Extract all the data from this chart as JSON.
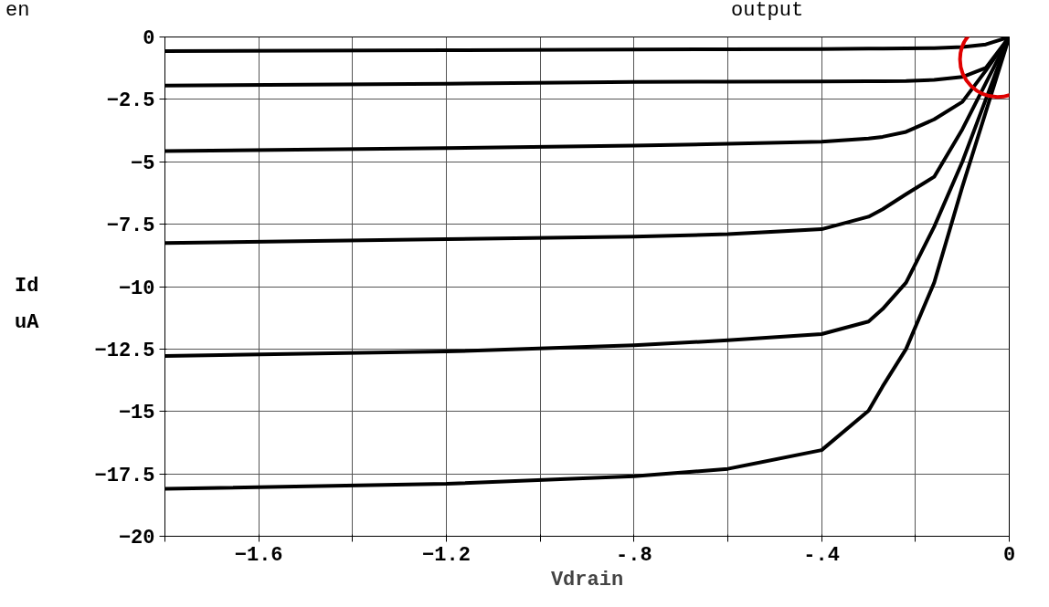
{
  "chart_data": {
    "type": "line",
    "title": "output",
    "xlabel": "Vdrain",
    "ylabel": "Id\nuA",
    "annotations": [
      "en"
    ],
    "xlim": [
      -1.8,
      0
    ],
    "ylim": [
      -20,
      0
    ],
    "xticks": [
      {
        "value": -1.8,
        "label": null
      },
      -1.6,
      {
        "value": -1.4,
        "label": null
      },
      -1.2,
      {
        "value": -1.0,
        "label": null
      },
      {
        "value": -0.8,
        "label": "-.8"
      },
      {
        "value": -0.6,
        "label": null
      },
      {
        "value": -0.4,
        "label": "-.4"
      },
      {
        "value": -0.2,
        "label": null
      },
      0
    ],
    "yticks": [
      -20,
      -17.5,
      -15,
      -12.5,
      -10,
      -7.5,
      -5,
      -2.5,
      0
    ],
    "grid": true,
    "marker": "none",
    "line_style": "solid",
    "x": [
      -1.8,
      -1.2,
      -0.8,
      -0.6,
      -0.4,
      -0.3,
      -0.27,
      -0.22,
      -0.16,
      -0.1,
      -0.05,
      0
    ],
    "series": [
      {
        "color": "#000000",
        "values": [
          -0.57,
          -0.53,
          -0.5,
          -0.49,
          -0.48,
          -0.47,
          -0.47,
          -0.46,
          -0.45,
          -0.4,
          -0.3,
          0
        ]
      },
      {
        "color": "#000000",
        "values": [
          -1.95,
          -1.87,
          -1.8,
          -1.79,
          -1.78,
          -1.77,
          -1.77,
          -1.76,
          -1.72,
          -1.6,
          -1.24,
          0
        ]
      },
      {
        "color": "#000000",
        "values": [
          -4.57,
          -4.45,
          -4.35,
          -4.28,
          -4.2,
          -4.07,
          -4.0,
          -3.8,
          -3.3,
          -2.6,
          -1.35,
          0
        ]
      },
      {
        "color": "#000000",
        "values": [
          -8.25,
          -8.1,
          -8.0,
          -7.9,
          -7.7,
          -7.2,
          -6.9,
          -6.3,
          -5.6,
          -3.7,
          -1.85,
          0
        ]
      },
      {
        "color": "#000000",
        "values": [
          -12.78,
          -12.6,
          -12.35,
          -12.15,
          -11.9,
          -11.4,
          -10.9,
          -9.84,
          -7.6,
          -5.0,
          -2.5,
          0
        ]
      },
      {
        "color": "#000000",
        "values": [
          -18.1,
          -17.9,
          -17.6,
          -17.3,
          -16.55,
          -14.97,
          -14.0,
          -12.5,
          -9.84,
          -6.0,
          -3.0,
          0
        ]
      }
    ]
  }
}
